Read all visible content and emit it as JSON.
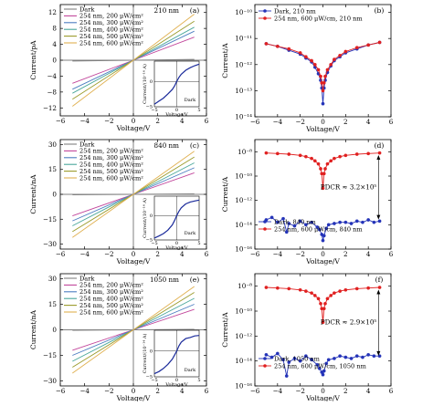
{
  "figure": {
    "layout": "3 rows x 2 columns",
    "background": "#ffffff"
  },
  "chart_data": [
    {
      "id": "a",
      "panel_label": "(a)",
      "annotation": "210 nm",
      "type": "line",
      "scale": "linear",
      "xlabel": "Voltage/V",
      "ylabel": "Current/pA",
      "xlim": [
        -6,
        6
      ],
      "ylim": [
        -14,
        14
      ],
      "xticks": [
        -6,
        -4,
        -2,
        0,
        2,
        4,
        6
      ],
      "yticks": [
        -12,
        -8,
        -4,
        0,
        4,
        8,
        12
      ],
      "legend_position": "upper-left",
      "series": [
        {
          "name": "Dark",
          "color": "#808080",
          "x": [
            -5,
            0,
            5
          ],
          "y": [
            -0.2,
            0,
            0.2
          ]
        },
        {
          "name": "254 nm, 200 μW/cm²",
          "color": "#c1449a",
          "x": [
            -5,
            0,
            5
          ],
          "y": [
            -5.8,
            0,
            5.8
          ]
        },
        {
          "name": "254 nm, 300 μW/cm²",
          "color": "#4a7cc0",
          "x": [
            -5,
            0,
            5
          ],
          "y": [
            -7.3,
            0,
            7.3
          ]
        },
        {
          "name": "254 nm, 400 μW/cm²",
          "color": "#49a79a",
          "x": [
            -5,
            0,
            5
          ],
          "y": [
            -8.3,
            0,
            8.3
          ]
        },
        {
          "name": "254 nm, 500 μW/cm²",
          "color": "#9a9a2a",
          "x": [
            -5,
            0,
            5
          ],
          "y": [
            -9.8,
            0,
            9.8
          ]
        },
        {
          "name": "254 nm, 600 μW/cm²",
          "color": "#e0b050",
          "x": [
            -5,
            0,
            5
          ],
          "y": [
            -11.6,
            0,
            11.6
          ]
        }
      ],
      "inset": {
        "ylabel": "Current/(10⁻¹⁴ A)",
        "xlabel": "Voltage/V",
        "legend": "Dark",
        "xlim": [
          -5,
          5
        ],
        "ylim": [
          -5,
          4
        ],
        "xticks": [
          -5,
          0,
          5
        ],
        "yticks": [
          -5,
          0
        ],
        "x": [
          -5,
          -4,
          -3,
          -2,
          -1,
          -0.5,
          0,
          0.5,
          1,
          2,
          3,
          4,
          5
        ],
        "y": [
          -4.5,
          -3.9,
          -3.3,
          -2.5,
          -1.6,
          -0.9,
          0,
          0.8,
          1.4,
          2.2,
          2.7,
          3.1,
          3.4
        ]
      }
    },
    {
      "id": "b",
      "panel_label": "(b)",
      "type": "line",
      "scale": "log-y",
      "xlabel": "Voltage/V",
      "ylabel": "Current/A",
      "xlim": [
        -6,
        6
      ],
      "ylim_exp": [
        -14,
        -9.7
      ],
      "xticks": [
        -6,
        -4,
        -2,
        0,
        2,
        4,
        6
      ],
      "yticks_exp": [
        -14,
        -13,
        -12,
        -11,
        -10
      ],
      "ytick_labels": [
        "10⁻¹⁴",
        "10⁻¹³",
        "10⁻¹²",
        "10⁻¹¹",
        "10⁻¹⁰"
      ],
      "legend_position": "upper-left",
      "series": [
        {
          "name": "Dark, 210 nm",
          "color": "#2433b8",
          "marker": "circle",
          "x": [
            -5,
            -4,
            -3,
            -2,
            -1.5,
            -1,
            -0.7,
            -0.4,
            -0.2,
            -0.1,
            0,
            0.1,
            0.2,
            0.4,
            0.7,
            1,
            1.5,
            2,
            3,
            4,
            5
          ],
          "y_exp": [
            -11.2,
            -11.3,
            -11.45,
            -11.6,
            -11.75,
            -11.9,
            -12.1,
            -12.35,
            -12.6,
            -12.9,
            -13.5,
            -12.9,
            -12.6,
            -12.3,
            -12.05,
            -11.85,
            -11.7,
            -11.55,
            -11.4,
            -11.25,
            -11.15
          ]
        },
        {
          "name": "254 nm, 600 μW/cm, 210 nm",
          "color": "#e02020",
          "marker": "circle",
          "x": [
            -5,
            -4,
            -3,
            -2,
            -1.5,
            -1,
            -0.7,
            -0.4,
            -0.2,
            -0.1,
            0,
            0.1,
            0.2,
            0.4,
            0.7,
            1,
            1.5,
            2,
            3,
            4,
            5
          ],
          "y_exp": [
            -11.2,
            -11.3,
            -11.4,
            -11.55,
            -11.7,
            -11.85,
            -12.0,
            -12.2,
            -12.45,
            -12.7,
            -13.0,
            -12.7,
            -12.45,
            -12.2,
            -12.0,
            -11.8,
            -11.65,
            -11.5,
            -11.35,
            -11.25,
            -11.15
          ]
        }
      ]
    },
    {
      "id": "c",
      "panel_label": "(c)",
      "annotation": "840 nm",
      "type": "line",
      "scale": "linear",
      "xlabel": "Voltage/V",
      "ylabel": "Current/nA",
      "xlim": [
        -6,
        6
      ],
      "ylim": [
        -33,
        33
      ],
      "xticks": [
        -6,
        -4,
        -2,
        0,
        2,
        4,
        6
      ],
      "yticks": [
        -30,
        -15,
        0,
        15,
        30
      ],
      "legend_position": "upper-left",
      "series": [
        {
          "name": "Dark",
          "color": "#808080",
          "x": [
            -5,
            0,
            5
          ],
          "y": [
            -0.3,
            0,
            0.3
          ]
        },
        {
          "name": "254 nm, 200 μW/cm²",
          "color": "#c1449a",
          "x": [
            -5,
            0,
            5
          ],
          "y": [
            -13,
            0,
            13
          ]
        },
        {
          "name": "254 nm, 300 μW/cm²",
          "color": "#4a7cc0",
          "x": [
            -5,
            0,
            5
          ],
          "y": [
            -16,
            0,
            16
          ]
        },
        {
          "name": "254 nm, 400 μW/cm²",
          "color": "#49a79a",
          "x": [
            -5,
            0,
            5
          ],
          "y": [
            -19,
            0,
            19
          ]
        },
        {
          "name": "254 nm, 500 μW/cm²",
          "color": "#9a9a2a",
          "x": [
            -5,
            0,
            5
          ],
          "y": [
            -22.5,
            0,
            22.5
          ]
        },
        {
          "name": "254 nm, 600 μW/cm²",
          "color": "#e0b050",
          "x": [
            -5,
            0,
            5
          ],
          "y": [
            -26,
            0,
            26
          ]
        }
      ],
      "inset": {
        "ylabel": "Current/(10⁻¹⁴ A)",
        "xlabel": "Voltage/V",
        "legend": "Dark",
        "xlim": [
          -5,
          5
        ],
        "ylim": [
          -5,
          4
        ],
        "xticks": [
          -5,
          0,
          5
        ],
        "yticks": [
          -5,
          0
        ],
        "x": [
          -5,
          -4,
          -3,
          -2,
          -1,
          -0.5,
          0,
          0.5,
          1,
          2,
          3,
          4,
          5
        ],
        "y": [
          -4.6,
          -4.2,
          -3.7,
          -3.0,
          -1.9,
          -1.0,
          0,
          0.9,
          1.6,
          2.4,
          2.8,
          3.0,
          3.2
        ]
      }
    },
    {
      "id": "d",
      "panel_label": "(d)",
      "type": "line",
      "scale": "log-y",
      "xlabel": "Voltage/V",
      "ylabel": "Current/A",
      "xlim": [
        -6,
        6
      ],
      "ylim_exp": [
        -16,
        -7
      ],
      "xticks": [
        -6,
        -4,
        -2,
        0,
        2,
        4,
        6
      ],
      "yticks_exp": [
        -16,
        -14,
        -12,
        -10,
        -8
      ],
      "ytick_labels": [
        "10⁻¹⁶",
        "10⁻¹⁴",
        "10⁻¹²",
        "10⁻¹⁰",
        "10⁻⁸"
      ],
      "legend_position": "lower-left",
      "annotation_text": "PDCR ≈ 3.2×10⁵",
      "series": [
        {
          "name": "Dark, 840 nm",
          "color": "#2433b8",
          "marker": "circle",
          "x": [
            -5,
            -4.5,
            -4,
            -3.5,
            -3.2,
            -3,
            -2.5,
            -2,
            -1.5,
            -1,
            -0.5,
            -0.3,
            -0.1,
            0,
            0.1,
            0.3,
            0.5,
            1,
            1.5,
            2,
            2.5,
            3,
            3.5,
            4,
            4.5,
            5
          ],
          "y_exp": [
            -13.6,
            -13.4,
            -13.8,
            -13.5,
            -14.6,
            -13.9,
            -14.1,
            -13.7,
            -14.0,
            -13.8,
            -14.2,
            -14.4,
            -14.8,
            -15.3,
            -14.9,
            -14.3,
            -14.0,
            -13.9,
            -13.8,
            -13.8,
            -13.9,
            -13.7,
            -13.8,
            -13.6,
            -13.8,
            -13.7
          ]
        },
        {
          "name": "254 nm, 600 μW/cm, 840 nm",
          "color": "#e02020",
          "marker": "circle",
          "x": [
            -5,
            -4,
            -3,
            -2,
            -1.5,
            -1,
            -0.7,
            -0.4,
            -0.2,
            -0.1,
            0,
            0.1,
            0.2,
            0.4,
            0.7,
            1,
            1.5,
            2,
            3,
            4,
            5
          ],
          "y_exp": [
            -8.1,
            -8.15,
            -8.2,
            -8.3,
            -8.4,
            -8.55,
            -8.75,
            -9.0,
            -9.4,
            -9.8,
            -11.0,
            -9.8,
            -9.4,
            -9.0,
            -8.75,
            -8.55,
            -8.4,
            -8.3,
            -8.2,
            -8.15,
            -8.1
          ]
        }
      ]
    },
    {
      "id": "e",
      "panel_label": "(e)",
      "annotation": "1050 nm",
      "type": "line",
      "scale": "linear",
      "xlabel": "Voltage/V",
      "ylabel": "Current/nA",
      "xlim": [
        -6,
        6
      ],
      "ylim": [
        -33,
        33
      ],
      "xticks": [
        -6,
        -4,
        -2,
        0,
        2,
        4,
        6
      ],
      "yticks": [
        -30,
        -15,
        0,
        15,
        30
      ],
      "legend_position": "upper-left",
      "series": [
        {
          "name": "Dark",
          "color": "#808080",
          "x": [
            -5,
            0,
            5
          ],
          "y": [
            -0.3,
            0,
            0.3
          ]
        },
        {
          "name": "254 nm, 200 μW/cm²",
          "color": "#c1449a",
          "x": [
            -5,
            0,
            5
          ],
          "y": [
            -12,
            0,
            12
          ]
        },
        {
          "name": "254 nm, 300 μW/cm²",
          "color": "#4a7cc0",
          "x": [
            -5,
            0,
            5
          ],
          "y": [
            -15,
            0,
            15
          ]
        },
        {
          "name": "254 nm, 400 μW/cm²",
          "color": "#49a79a",
          "x": [
            -5,
            0,
            5
          ],
          "y": [
            -18.5,
            0,
            18.5
          ]
        },
        {
          "name": "254 nm, 500 μW/cm²",
          "color": "#9a9a2a",
          "x": [
            -5,
            0,
            5
          ],
          "y": [
            -22,
            0,
            22
          ]
        },
        {
          "name": "254 nm, 600 μW/cm²",
          "color": "#e0b050",
          "x": [
            -5,
            0,
            5
          ],
          "y": [
            -25.5,
            0,
            25.5
          ]
        }
      ],
      "inset": {
        "ylabel": "Current/(10⁻¹⁴ A)",
        "xlabel": "Voltage/V",
        "legend": "Dark",
        "xlim": [
          -5,
          5
        ],
        "ylim": [
          -5,
          4
        ],
        "xticks": [
          -5,
          0,
          5
        ],
        "yticks": [
          -5,
          0
        ],
        "x": [
          -5,
          -4,
          -3,
          -2,
          -1,
          -0.5,
          0,
          0.5,
          1,
          2,
          3,
          4,
          5
        ],
        "y": [
          -4.4,
          -4.0,
          -3.4,
          -2.6,
          -1.6,
          -0.8,
          0,
          1.0,
          1.7,
          2.4,
          2.6,
          2.9,
          3.0
        ]
      }
    },
    {
      "id": "f",
      "panel_label": "(f)",
      "type": "line",
      "scale": "log-y",
      "xlabel": "Voltage/V",
      "ylabel": "Current/A",
      "xlim": [
        -6,
        6
      ],
      "ylim_exp": [
        -16,
        -7
      ],
      "xticks": [
        -6,
        -4,
        -2,
        0,
        2,
        4,
        6
      ],
      "yticks_exp": [
        -16,
        -14,
        -12,
        -10,
        -8
      ],
      "ytick_labels": [
        "10⁻¹⁶",
        "10⁻¹⁴",
        "10⁻¹²",
        "10⁻¹⁰",
        "10⁻⁸"
      ],
      "legend_position": "lower-left",
      "annotation_text": "PDCR ≈ 2.9×10⁵",
      "series": [
        {
          "name": "Dark, 1050 nm",
          "color": "#2433b8",
          "marker": "circle",
          "x": [
            -5,
            -4.5,
            -4,
            -3.5,
            -3.2,
            -3,
            -2.5,
            -2,
            -1.5,
            -1,
            -0.5,
            -0.3,
            -0.1,
            0,
            0.1,
            0.3,
            0.5,
            1,
            1.5,
            2,
            2.5,
            3,
            3.5,
            4,
            4.5,
            5
          ],
          "y_exp": [
            -13.5,
            -13.7,
            -13.4,
            -13.9,
            -15.2,
            -14.1,
            -13.8,
            -14.0,
            -13.6,
            -13.9,
            -14.3,
            -14.6,
            -14.9,
            -15.1,
            -14.8,
            -14.2,
            -13.9,
            -13.8,
            -13.6,
            -13.7,
            -13.8,
            -13.6,
            -13.7,
            -13.5,
            -13.6,
            -13.6
          ]
        },
        {
          "name": "254 nm, 600 μW/cm, 1050 nm",
          "color": "#e02020",
          "marker": "circle",
          "x": [
            -5,
            -4,
            -3,
            -2,
            -1.5,
            -1,
            -0.7,
            -0.4,
            -0.2,
            -0.1,
            0,
            0.1,
            0.2,
            0.4,
            0.7,
            1,
            1.5,
            2,
            3,
            4,
            5
          ],
          "y_exp": [
            -8.1,
            -8.15,
            -8.2,
            -8.3,
            -8.4,
            -8.55,
            -8.75,
            -9.0,
            -9.4,
            -9.8,
            -10.9,
            -9.8,
            -9.4,
            -9.0,
            -8.75,
            -8.55,
            -8.4,
            -8.3,
            -8.2,
            -8.15,
            -8.1
          ]
        }
      ]
    }
  ]
}
